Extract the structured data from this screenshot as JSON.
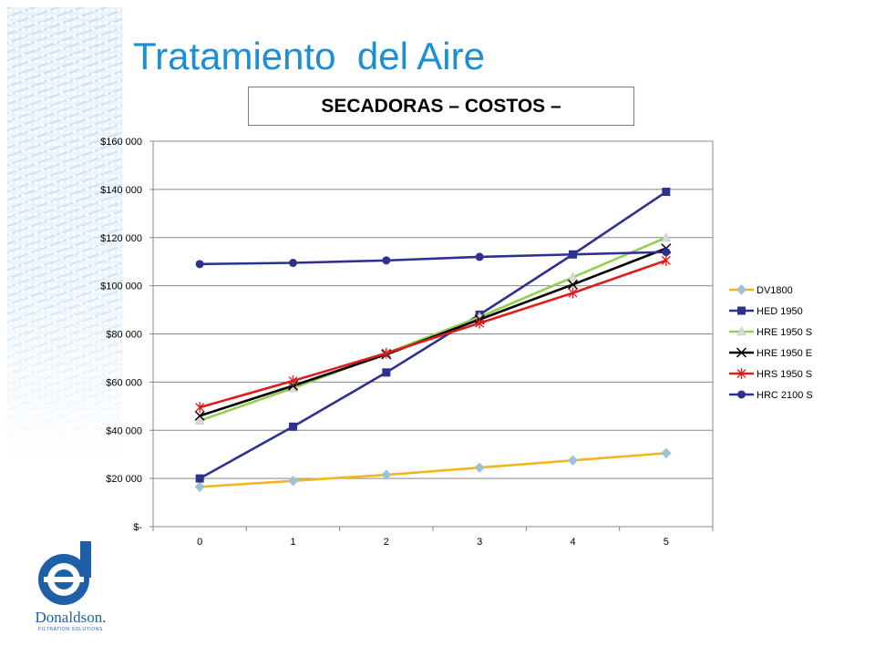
{
  "slide": {
    "title": "Tratamiento  del Aire",
    "subtitle": "SECADORAS – COSTOS –"
  },
  "logo": {
    "wordmark": "Donaldson.",
    "tagline": "FILTRATION SOLUTIONS",
    "color": "#1f5fa8"
  },
  "chart_data": {
    "type": "line",
    "title": "",
    "xlabel": "",
    "ylabel": "",
    "categories": [
      "0",
      "1",
      "2",
      "3",
      "4",
      "5"
    ],
    "ylim": [
      0,
      160000
    ],
    "yticks": [
      0,
      20000,
      40000,
      60000,
      80000,
      100000,
      120000,
      140000,
      160000
    ],
    "ytick_labels": [
      "$-",
      "$20 000",
      "$40 000",
      "$60 000",
      "$80 000",
      "$100 000",
      "$120 000",
      "$140 000",
      "$160 000"
    ],
    "grid": true,
    "legend_position": "right",
    "series": [
      {
        "name": "DV1800",
        "color": "#f2b51c",
        "marker": "diamond",
        "marker_color": "#9cc3d6",
        "values": [
          16500,
          19000,
          21500,
          24500,
          27500,
          30500
        ]
      },
      {
        "name": "HED 1950",
        "color": "#2e3192",
        "marker": "square",
        "marker_color": "#2e3192",
        "values": [
          20000,
          41500,
          64000,
          88000,
          113000,
          139000
        ]
      },
      {
        "name": "HRE 1950 S",
        "color": "#92d050",
        "marker": "triangle",
        "marker_color": "#d9d9d9",
        "values": [
          44000,
          57500,
          72000,
          87000,
          103500,
          120000
        ]
      },
      {
        "name": "HRE 1950 E",
        "color": "#000000",
        "marker": "x",
        "marker_color": "#000000",
        "values": [
          46000,
          58500,
          71500,
          86000,
          100500,
          115500
        ]
      },
      {
        "name": "HRS 1950 S",
        "color": "#e01b1b",
        "marker": "star",
        "marker_color": "#e01b1b",
        "values": [
          49500,
          60500,
          72000,
          84500,
          97000,
          110500
        ]
      },
      {
        "name": "HRC 2100 S",
        "color": "#2e3192",
        "marker": "circle",
        "marker_color": "#2e3192",
        "values": [
          109000,
          109500,
          110500,
          112000,
          113000,
          114000
        ]
      }
    ]
  }
}
